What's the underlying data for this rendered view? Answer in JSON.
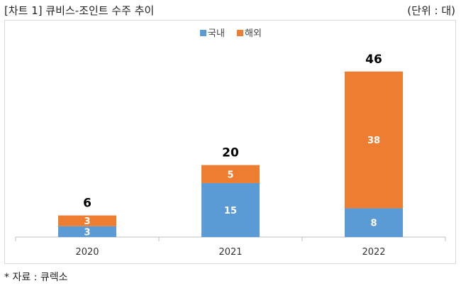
{
  "title": "[차트 1] 큐비스-조인트 수주 추이",
  "unit": "(단위 : 대)",
  "source": "*  자료 : 큐렉소",
  "chart_data": {
    "type": "bar",
    "stacked": true,
    "categories": [
      "2020",
      "2021",
      "2022"
    ],
    "series": [
      {
        "name": "국내",
        "values": [
          3,
          15,
          8
        ],
        "color": "#5b9bd5"
      },
      {
        "name": "해외",
        "values": [
          3,
          5,
          38
        ],
        "color": "#ed7d31"
      }
    ],
    "totals": [
      6,
      20,
      46
    ],
    "legend_position": "top-center",
    "grid": false,
    "ylim": [
      0,
      50
    ]
  }
}
